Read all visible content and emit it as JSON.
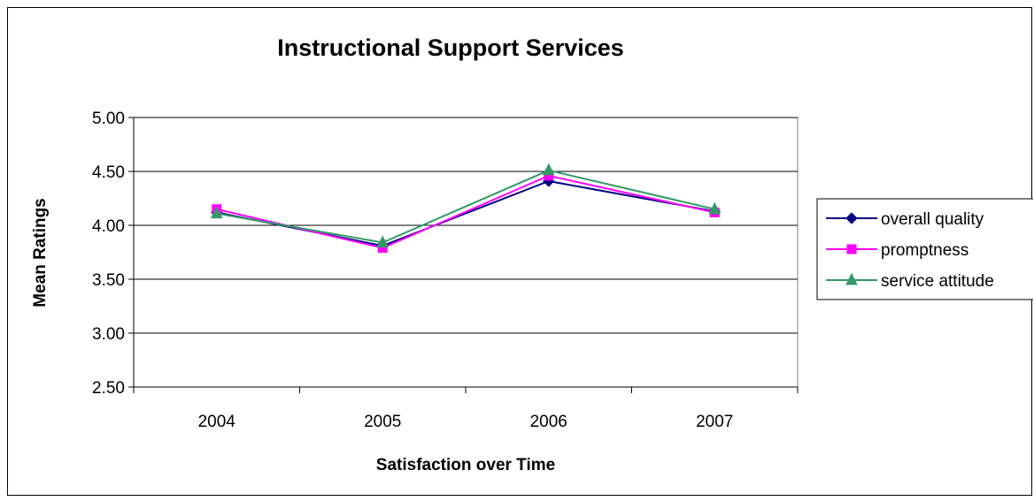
{
  "chart_data": {
    "type": "line",
    "title": "Instructional Support Services",
    "xlabel": "Satisfaction over Time",
    "ylabel": "Mean Ratings",
    "categories": [
      "2004",
      "2005",
      "2006",
      "2007"
    ],
    "ylim": [
      2.5,
      5.0
    ],
    "yticks": [
      "2.50",
      "3.00",
      "3.50",
      "4.00",
      "4.50",
      "5.00"
    ],
    "grid": true,
    "legend_position": "right",
    "series": [
      {
        "name": "overall quality",
        "values": [
          4.12,
          3.81,
          4.41,
          4.13
        ],
        "color": "#000080",
        "marker": "diamond"
      },
      {
        "name": "promptness",
        "values": [
          4.15,
          3.79,
          4.46,
          4.12
        ],
        "color": "#ff00ff",
        "marker": "square"
      },
      {
        "name": "service attitude",
        "values": [
          4.11,
          3.84,
          4.51,
          4.15
        ],
        "color": "#339966",
        "marker": "triangle"
      }
    ]
  }
}
